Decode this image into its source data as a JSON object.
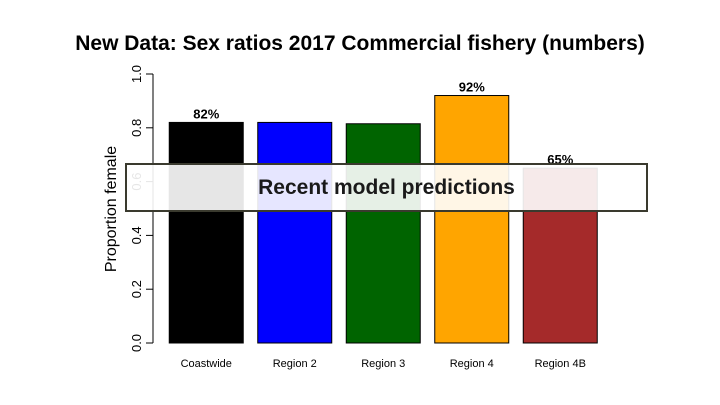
{
  "chart_data": {
    "type": "bar",
    "title": "New Data: Sex ratios 2017 Commercial fishery (numbers)",
    "xlabel": "",
    "ylabel": "Proportion female",
    "ylim": [
      0,
      1
    ],
    "yticks": [
      "0.0",
      "0.2",
      "0.4",
      "0.6",
      "0.8",
      "1.0"
    ],
    "categories": [
      "Coastwide",
      "Region 2",
      "Region 3",
      "Region 4",
      "Region 4B"
    ],
    "values": [
      0.82,
      0.82,
      0.815,
      0.92,
      0.65
    ],
    "colors": [
      "#000000",
      "#0000ff",
      "#006400",
      "#ffa500",
      "#a52a2a"
    ],
    "value_labels": [
      "82%",
      "",
      "",
      "92%",
      "65%"
    ],
    "grid": false,
    "legend": "none"
  },
  "overlay": {
    "text": "Recent model predictions"
  }
}
